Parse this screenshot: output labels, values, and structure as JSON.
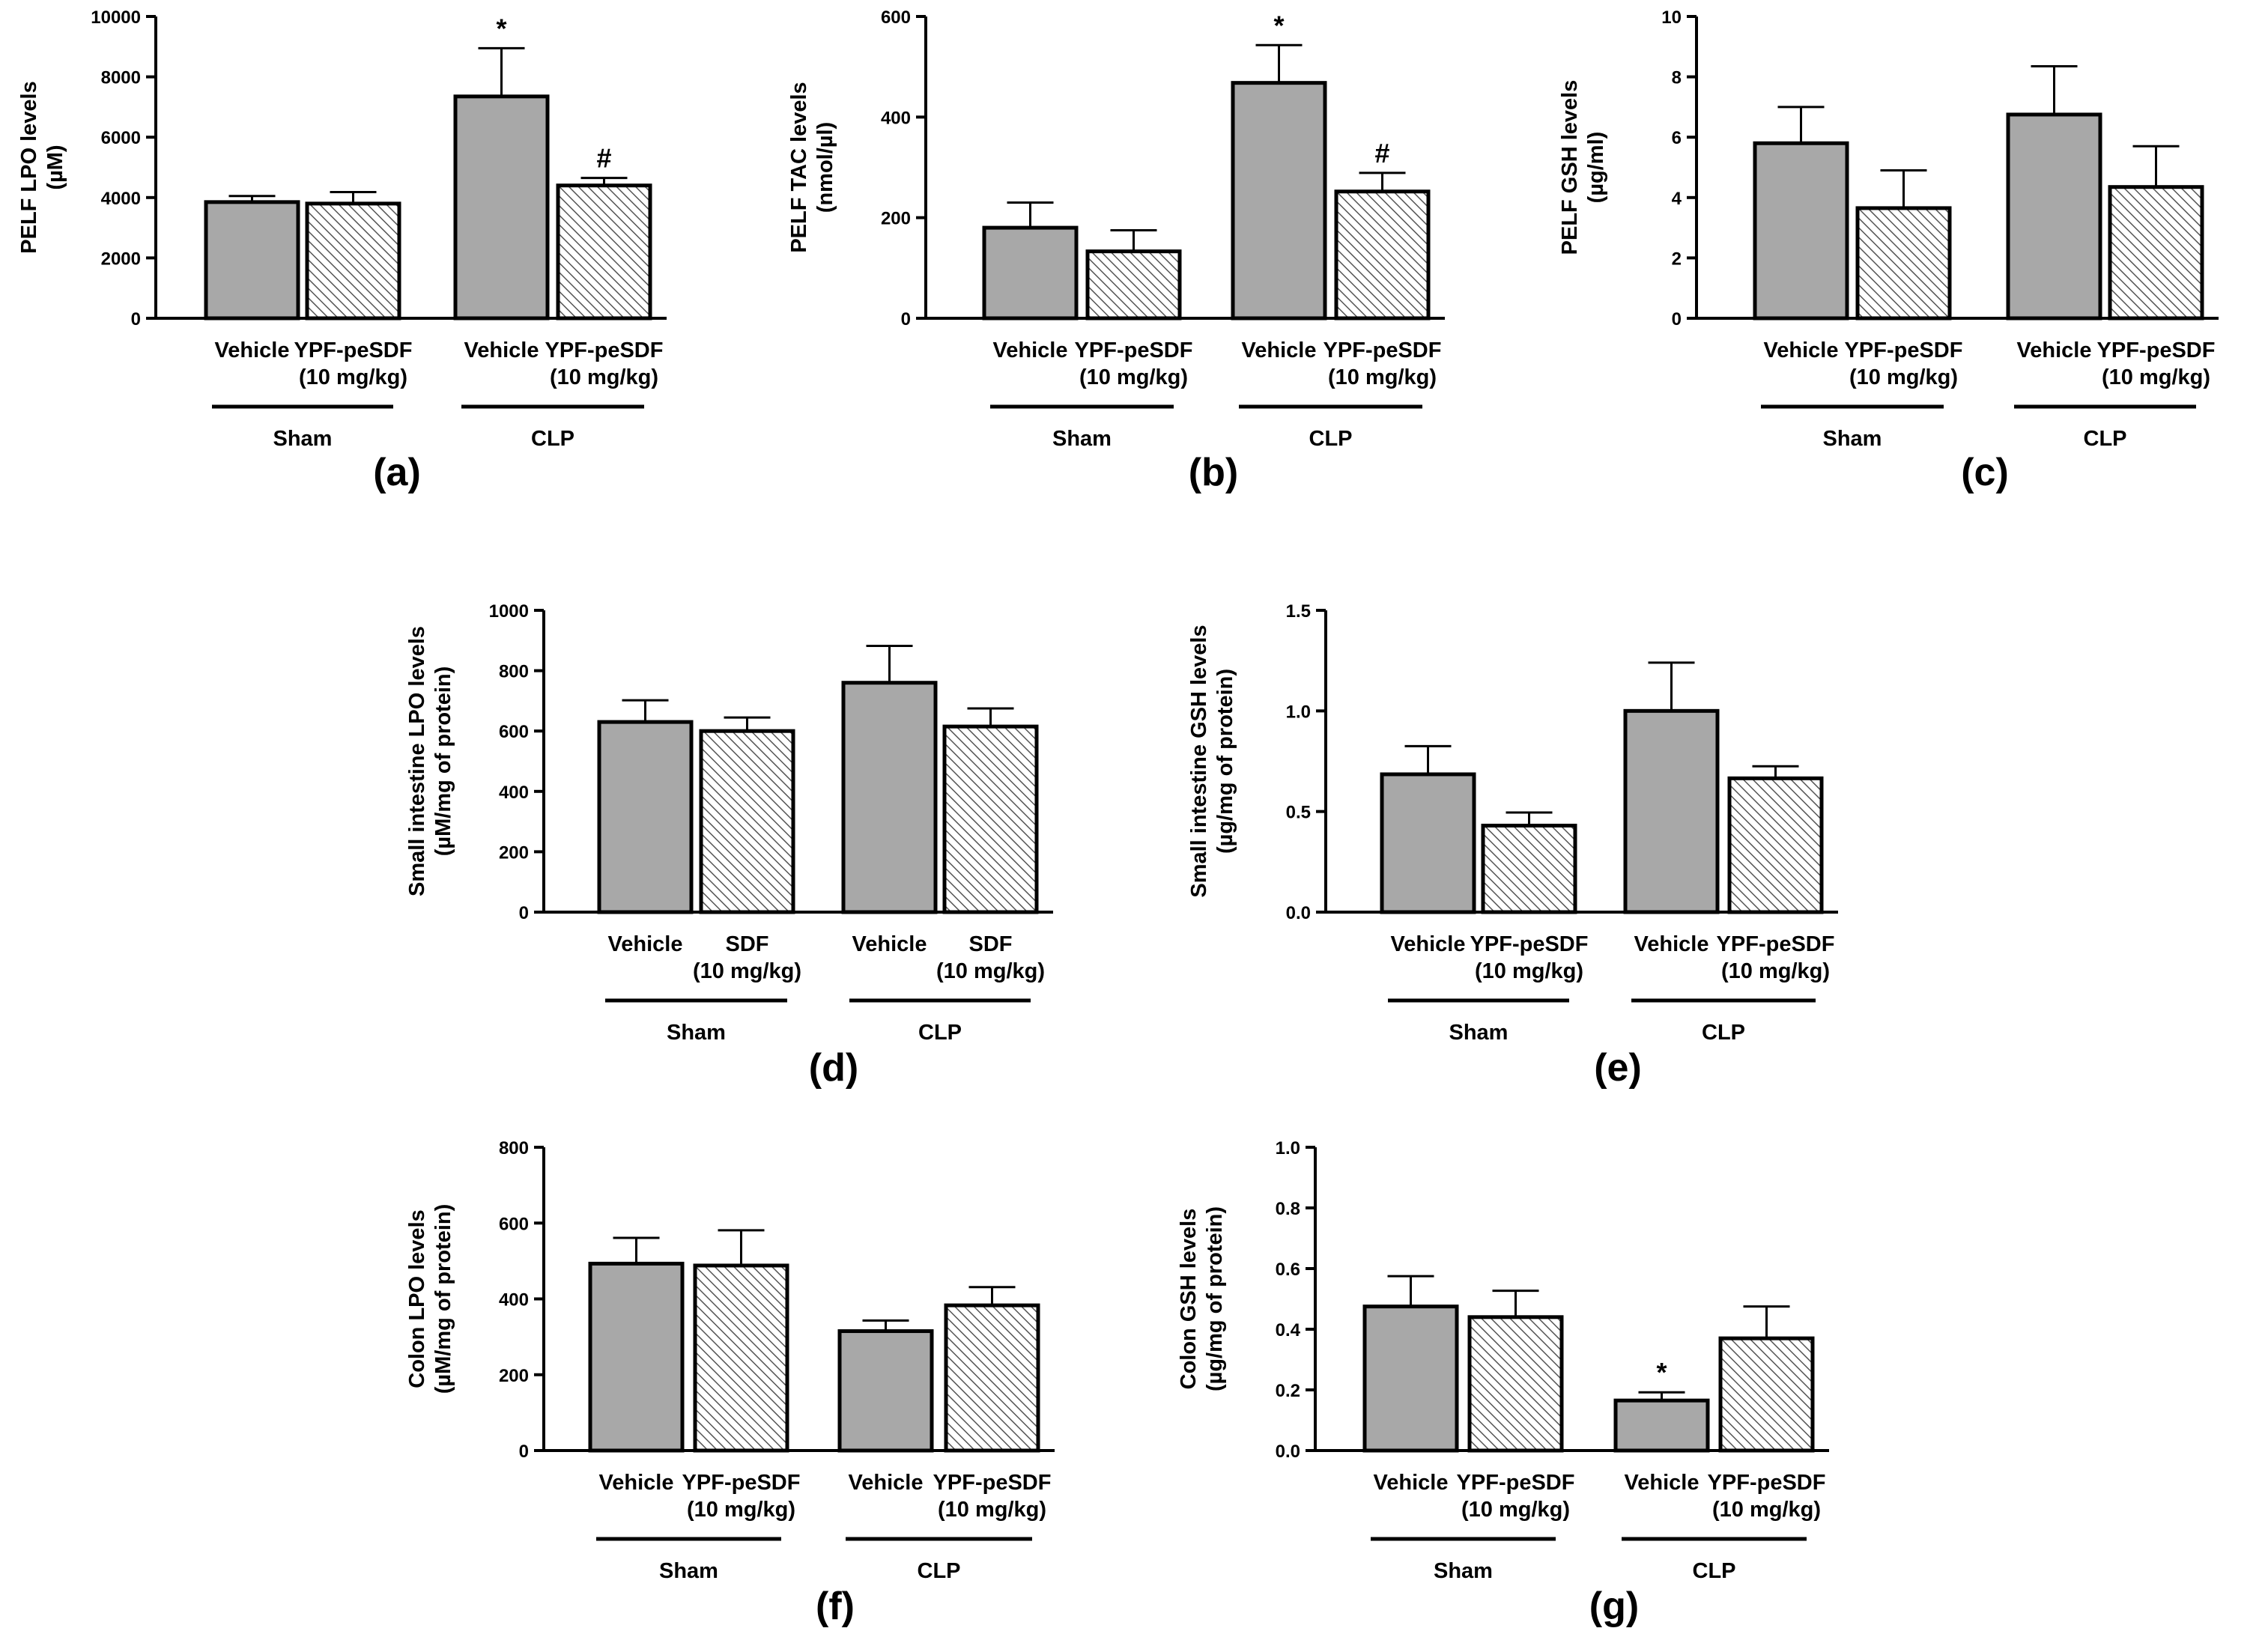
{
  "chart_data": [
    {
      "panel": "(a)",
      "type": "bar",
      "ylabel": [
        "PELF LPO levels",
        "(µM)"
      ],
      "ylim": [
        0,
        10000
      ],
      "yticks": [
        0,
        2000,
        4000,
        6000,
        8000,
        10000
      ],
      "tick_labels": [
        "0",
        "2000",
        "4000",
        "6000",
        "8000",
        "10000"
      ],
      "groups": [
        {
          "name": "Sham",
          "bars": [
            {
              "label": [
                "Vehicle"
              ],
              "value": 3850,
              "err": 200,
              "pattern": "solid",
              "mark": ""
            },
            {
              "label": [
                "YPF-peSDF",
                "(10 mg/kg)"
              ],
              "value": 3800,
              "err": 380,
              "pattern": "hatch",
              "mark": ""
            }
          ]
        },
        {
          "name": "CLP",
          "bars": [
            {
              "label": [
                "Vehicle"
              ],
              "value": 7350,
              "err": 1600,
              "pattern": "solid",
              "mark": "*"
            },
            {
              "label": [
                "YPF-peSDF",
                "(10 mg/kg)"
              ],
              "value": 4400,
              "err": 250,
              "pattern": "hatch",
              "mark": "#"
            }
          ]
        }
      ]
    },
    {
      "panel": "(b)",
      "type": "bar",
      "ylabel": [
        "PELF TAC levels",
        "(nmol/µl)"
      ],
      "ylim": [
        0,
        600
      ],
      "yticks": [
        0,
        200,
        400,
        600
      ],
      "tick_labels": [
        "0",
        "200",
        "400",
        "600"
      ],
      "groups": [
        {
          "name": "Sham",
          "bars": [
            {
              "label": [
                "Vehicle"
              ],
              "value": 180,
              "err": 50,
              "pattern": "solid",
              "mark": ""
            },
            {
              "label": [
                "YPF-peSDF",
                "(10 mg/kg)"
              ],
              "value": 133,
              "err": 42,
              "pattern": "hatch",
              "mark": ""
            }
          ]
        },
        {
          "name": "CLP",
          "bars": [
            {
              "label": [
                "Vehicle"
              ],
              "value": 468,
              "err": 75,
              "pattern": "solid",
              "mark": "*"
            },
            {
              "label": [
                "YPF-peSDF",
                "(10 mg/kg)"
              ],
              "value": 252,
              "err": 37,
              "pattern": "hatch",
              "mark": "#"
            }
          ]
        }
      ]
    },
    {
      "panel": "(c)",
      "type": "bar",
      "ylabel": [
        "PELF GSH levels",
        "(µg/ml)"
      ],
      "ylim": [
        0,
        10
      ],
      "yticks": [
        0,
        2,
        4,
        6,
        8,
        10
      ],
      "tick_labels": [
        "0",
        "2",
        "4",
        "6",
        "8",
        "10"
      ],
      "groups": [
        {
          "name": "Sham",
          "bars": [
            {
              "label": [
                "Vehicle"
              ],
              "value": 5.8,
              "err": 1.2,
              "pattern": "solid",
              "mark": ""
            },
            {
              "label": [
                "YPF-peSDF",
                "(10 mg/kg)"
              ],
              "value": 3.65,
              "err": 1.25,
              "pattern": "hatch",
              "mark": ""
            }
          ]
        },
        {
          "name": "CLP",
          "bars": [
            {
              "label": [
                "Vehicle"
              ],
              "value": 6.75,
              "err": 1.6,
              "pattern": "solid",
              "mark": ""
            },
            {
              "label": [
                "YPF-peSDF",
                "(10 mg/kg)"
              ],
              "value": 4.35,
              "err": 1.35,
              "pattern": "hatch",
              "mark": ""
            }
          ]
        }
      ]
    },
    {
      "panel": "(d)",
      "type": "bar",
      "ylabel": [
        "Small intestine LPO levels",
        "(µM/mg of protein)"
      ],
      "ylim": [
        0,
        1000
      ],
      "yticks": [
        0,
        200,
        400,
        600,
        800,
        1000
      ],
      "tick_labels": [
        "0",
        "200",
        "400",
        "600",
        "800",
        "1000"
      ],
      "groups": [
        {
          "name": "Sham",
          "bars": [
            {
              "label": [
                "Vehicle"
              ],
              "value": 630,
              "err": 72,
              "pattern": "solid",
              "mark": ""
            },
            {
              "label": [
                "SDF",
                "(10 mg/kg)"
              ],
              "value": 600,
              "err": 45,
              "pattern": "hatch",
              "mark": ""
            }
          ]
        },
        {
          "name": "CLP",
          "bars": [
            {
              "label": [
                "Vehicle"
              ],
              "value": 760,
              "err": 122,
              "pattern": "solid",
              "mark": ""
            },
            {
              "label": [
                "SDF",
                "(10 mg/kg)"
              ],
              "value": 615,
              "err": 60,
              "pattern": "hatch",
              "mark": ""
            }
          ]
        }
      ]
    },
    {
      "panel": "(e)",
      "type": "bar",
      "ylabel": [
        "Small intestine GSH levels",
        "(µg/mg of protein)"
      ],
      "ylim": [
        0,
        1.5
      ],
      "yticks": [
        0,
        0.5,
        1.0,
        1.5
      ],
      "tick_labels": [
        "0.0",
        "0.5",
        "1.0",
        "1.5"
      ],
      "groups": [
        {
          "name": "Sham",
          "bars": [
            {
              "label": [
                "Vehicle"
              ],
              "value": 0.685,
              "err": 0.14,
              "pattern": "solid",
              "mark": ""
            },
            {
              "label": [
                "YPF-peSDF",
                "(10 mg/kg)"
              ],
              "value": 0.43,
              "err": 0.065,
              "pattern": "hatch",
              "mark": ""
            }
          ]
        },
        {
          "name": "CLP",
          "bars": [
            {
              "label": [
                "Vehicle"
              ],
              "value": 1.0,
              "err": 0.24,
              "pattern": "solid",
              "mark": ""
            },
            {
              "label": [
                "YPF-peSDF",
                "(10 mg/kg)"
              ],
              "value": 0.665,
              "err": 0.06,
              "pattern": "hatch",
              "mark": ""
            }
          ]
        }
      ]
    },
    {
      "panel": "(f)",
      "type": "bar",
      "ylabel": [
        "Colon LPO levels",
        "(µM/mg of protein)"
      ],
      "ylim": [
        0,
        800
      ],
      "yticks": [
        0,
        200,
        400,
        600,
        800
      ],
      "tick_labels": [
        "0",
        "200",
        "400",
        "600",
        "800"
      ],
      "groups": [
        {
          "name": "Sham",
          "bars": [
            {
              "label": [
                "Vehicle"
              ],
              "value": 493,
              "err": 68,
              "pattern": "solid",
              "mark": ""
            },
            {
              "label": [
                "YPF-peSDF",
                "(10 mg/kg)"
              ],
              "value": 488,
              "err": 93,
              "pattern": "hatch",
              "mark": ""
            }
          ]
        },
        {
          "name": "CLP",
          "bars": [
            {
              "label": [
                "Vehicle"
              ],
              "value": 315,
              "err": 28,
              "pattern": "solid",
              "mark": ""
            },
            {
              "label": [
                "YPF-peSDF",
                "(10 mg/kg)"
              ],
              "value": 383,
              "err": 48,
              "pattern": "hatch",
              "mark": ""
            }
          ]
        }
      ]
    },
    {
      "panel": "(g)",
      "type": "bar",
      "ylabel": [
        "Colon GSH levels",
        "(µg/mg of protein)"
      ],
      "ylim": [
        0,
        1.0
      ],
      "yticks": [
        0,
        0.2,
        0.4,
        0.6,
        0.8,
        1.0
      ],
      "tick_labels": [
        "0.0",
        "0.2",
        "0.4",
        "0.6",
        "0.8",
        "1.0"
      ],
      "groups": [
        {
          "name": "Sham",
          "bars": [
            {
              "label": [
                "Vehicle"
              ],
              "value": 0.475,
              "err": 0.1,
              "pattern": "solid",
              "mark": ""
            },
            {
              "label": [
                "YPF-peSDF",
                "(10 mg/kg)"
              ],
              "value": 0.44,
              "err": 0.087,
              "pattern": "hatch",
              "mark": ""
            }
          ]
        },
        {
          "name": "CLP",
          "bars": [
            {
              "label": [
                "Vehicle"
              ],
              "value": 0.165,
              "err": 0.027,
              "pattern": "solid",
              "mark": "*"
            },
            {
              "label": [
                "YPF-peSDF",
                "(10 mg/kg)"
              ],
              "value": 0.37,
              "err": 0.105,
              "pattern": "hatch",
              "mark": ""
            }
          ]
        }
      ]
    }
  ],
  "colors": {
    "bar_fill": "#a8a8a8",
    "hatch_fill": "#ffffff",
    "hatch_line": "#555555",
    "stroke": "#000000"
  }
}
